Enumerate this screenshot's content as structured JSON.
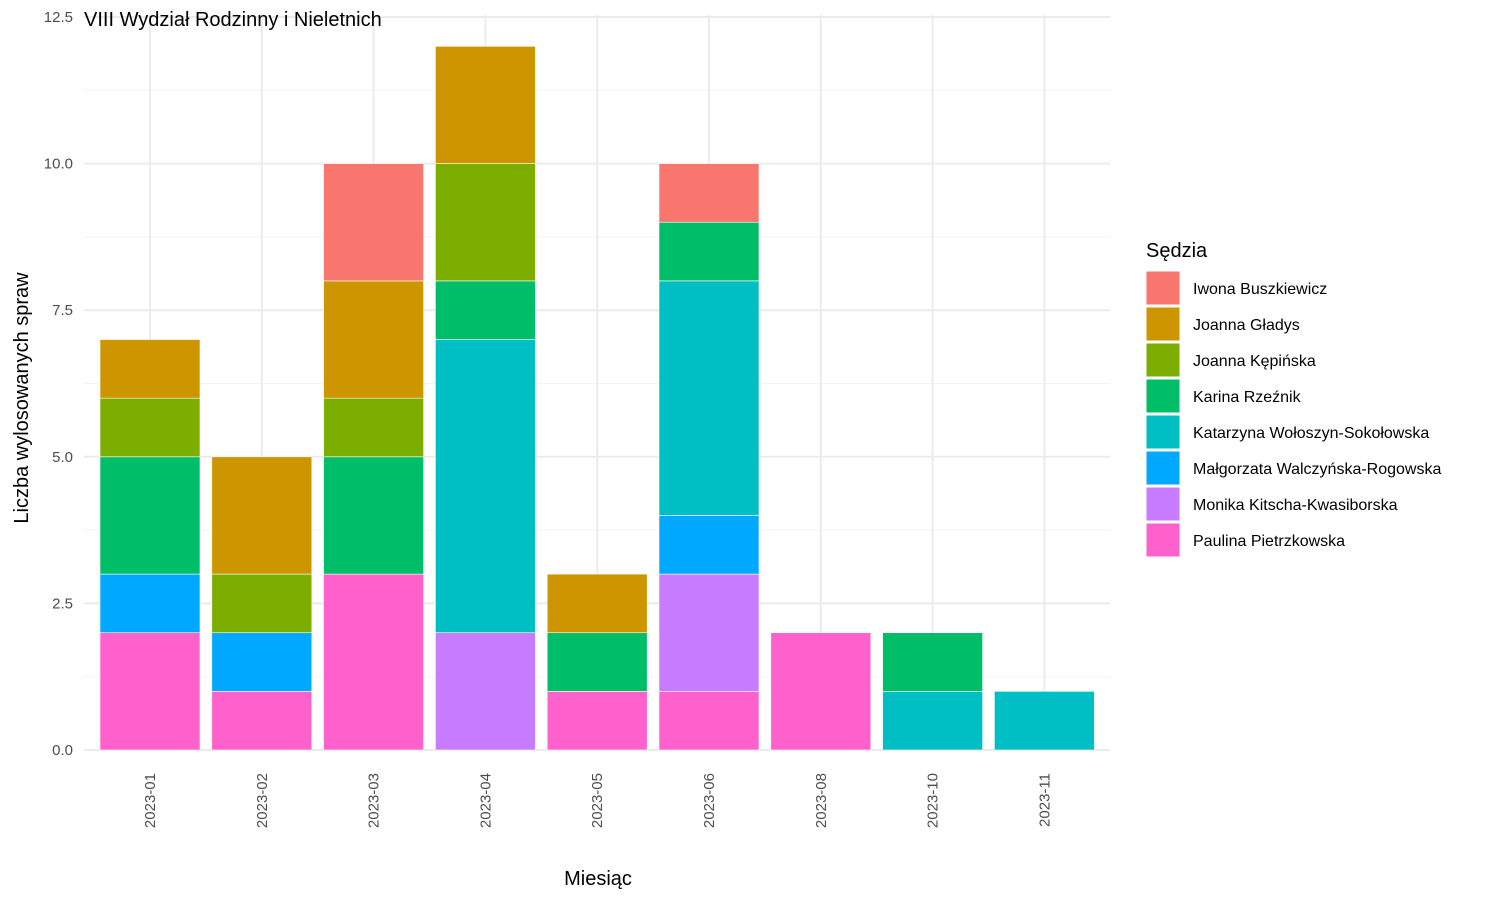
{
  "chart_data": {
    "type": "bar",
    "stacked": true,
    "title": "VIII Wydział Rodzinny i Nieletnich",
    "xlabel": "Miesiąc",
    "ylabel": "Liczba wylosowanych spraw",
    "ylim": [
      0,
      12.5
    ],
    "yticks": [
      "0.0",
      "2.5",
      "5.0",
      "7.5",
      "10.0",
      "12.5"
    ],
    "grid": true,
    "legend_position": "right",
    "legend_title": "Sędzia",
    "categories": [
      "2023-01",
      "2023-02",
      "2023-03",
      "2023-04",
      "2023-05",
      "2023-06",
      "2023-08",
      "2023-10",
      "2023-11"
    ],
    "series": [
      {
        "name": "Iwona Buszkiewicz",
        "color": "#F8766D",
        "values": [
          0,
          0,
          2,
          0,
          0,
          1,
          0,
          0,
          0
        ]
      },
      {
        "name": "Joanna Gładys",
        "color": "#CD9600",
        "values": [
          1,
          2,
          2,
          2,
          1,
          0,
          0,
          0,
          0
        ]
      },
      {
        "name": "Joanna Kępińska",
        "color": "#7CAE00",
        "values": [
          1,
          1,
          1,
          2,
          0,
          0,
          0,
          0,
          0
        ]
      },
      {
        "name": "Karina Rzeźnik",
        "color": "#00BE67",
        "values": [
          2,
          0,
          2,
          1,
          1,
          1,
          0,
          1,
          0
        ]
      },
      {
        "name": "Katarzyna Wołoszyn-Sokołowska",
        "color": "#00BFC4",
        "values": [
          0,
          0,
          0,
          5,
          0,
          4,
          0,
          1,
          1
        ]
      },
      {
        "name": "Małgorzata Walczyńska-Rogowska",
        "color": "#00A9FF",
        "values": [
          1,
          1,
          0,
          0,
          0,
          1,
          0,
          0,
          0
        ]
      },
      {
        "name": "Monika Kitscha-Kwasiborska",
        "color": "#C77CFF",
        "values": [
          0,
          0,
          0,
          2,
          0,
          2,
          0,
          0,
          0
        ]
      },
      {
        "name": "Paulina Pietrzkowska",
        "color": "#FF61CC",
        "values": [
          2,
          1,
          3,
          0,
          1,
          1,
          2,
          0,
          0
        ]
      }
    ]
  }
}
